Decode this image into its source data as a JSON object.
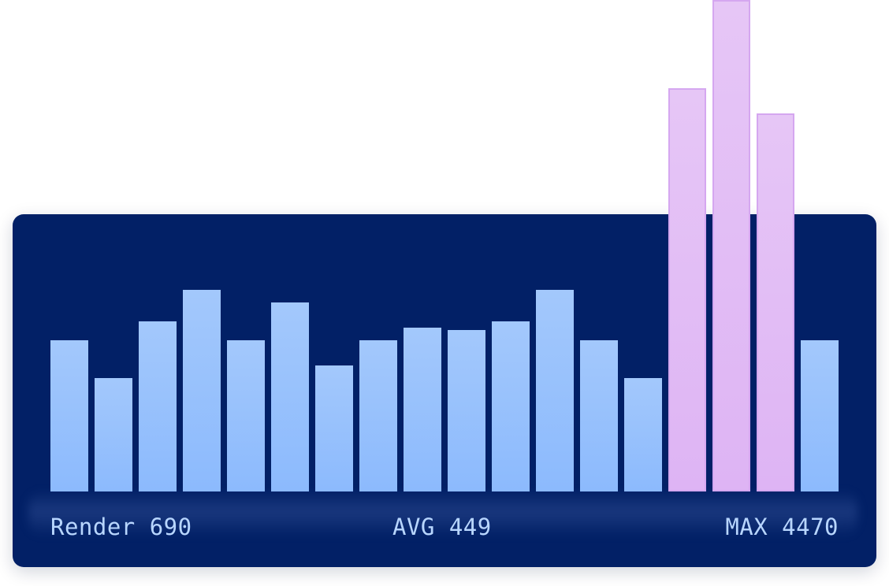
{
  "chart_data": {
    "type": "bar",
    "values": [
      1200,
      900,
      1350,
      1600,
      1200,
      1500,
      1000,
      1200,
      1300,
      1280,
      1350,
      1600,
      1200,
      900,
      3200,
      3900,
      3000,
      1200
    ],
    "highlighted": [
      14,
      15,
      16
    ],
    "ylim": [
      0,
      3900
    ],
    "colors": {
      "normal": "#8cbafd",
      "highlight": "#deb4f4",
      "background": "#022066"
    }
  },
  "footer": {
    "left": "Render 690",
    "center": "AVG 449",
    "right": "MAX 4470"
  }
}
